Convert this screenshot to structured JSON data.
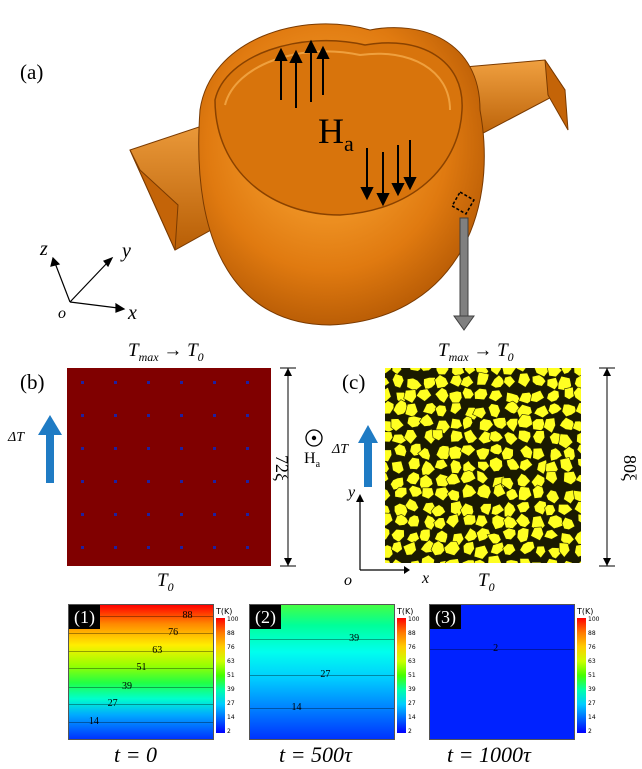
{
  "labels": {
    "panel_a": "(a)",
    "panel_b": "(b)",
    "panel_c": "(c)",
    "field": "H",
    "field_sub": "a",
    "axis_z": "z",
    "axis_y": "y",
    "axis_x": "x",
    "axis_o": "o",
    "top_b": "T",
    "top_b_sub": "max",
    "top_b_arrow": " → T",
    "top_b_sub2": "0",
    "bottom_b": "T",
    "bottom_b_sub": "0",
    "delta_t": "ΔT",
    "xi_b": "72ξ",
    "xi_c": "80ξ",
    "field_c": "H",
    "field_c_sub": "a",
    "axis_c_y": "y",
    "axis_c_x": "x",
    "axis_c_o": "o"
  },
  "colorbar": {
    "title": "T(K)",
    "ticks": [
      "100",
      "88",
      "76",
      "63",
      "51",
      "39",
      "27",
      "14",
      "2"
    ],
    "colors": [
      "#ff0000",
      "#ff7700",
      "#ffcc00",
      "#ccff00",
      "#44ff00",
      "#00ffaa",
      "#00ccff",
      "#0066ff",
      "#0000ff"
    ]
  },
  "snapshots": [
    {
      "badge": "(1)",
      "time": "t = 0",
      "contours": [
        "88",
        "76",
        "63",
        "51",
        "39",
        "27",
        "14"
      ]
    },
    {
      "badge": "(2)",
      "time": "t = 500τ",
      "contours": [
        "39",
        "27",
        "14"
      ]
    },
    {
      "badge": "(3)",
      "time": "t = 1000τ",
      "contours": [
        "2"
      ]
    }
  ]
}
